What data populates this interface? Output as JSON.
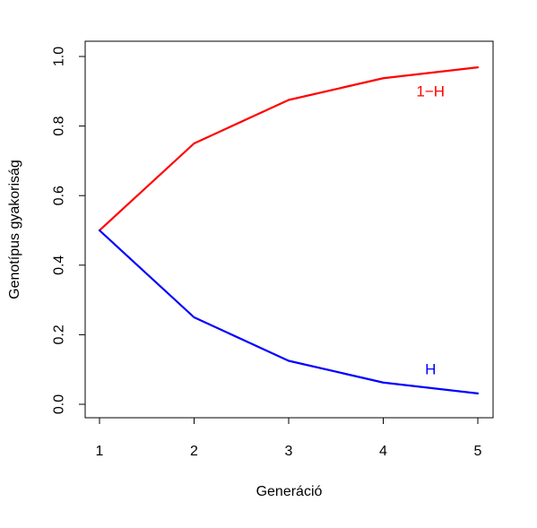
{
  "chart_data": {
    "type": "line",
    "title": "",
    "xlabel": "Generáció",
    "ylabel": "Genotípus gyakoriság",
    "x": [
      1,
      2,
      3,
      4,
      5
    ],
    "xlim": [
      1,
      5
    ],
    "ylim": [
      0,
      1
    ],
    "x_ticks": [
      1,
      2,
      3,
      4,
      5
    ],
    "x_tick_labels": [
      "1",
      "2",
      "3",
      "4",
      "5"
    ],
    "y_ticks": [
      0.0,
      0.2,
      0.4,
      0.6,
      0.8,
      1.0
    ],
    "y_tick_labels": [
      "0.0",
      "0.2",
      "0.4",
      "0.6",
      "0.8",
      "1.0"
    ],
    "grid": false,
    "series": [
      {
        "name": "1−H",
        "color": "#ff0000",
        "values": [
          0.5,
          0.75,
          0.875,
          0.9375,
          0.96875
        ]
      },
      {
        "name": "H",
        "color": "#0000ff",
        "values": [
          0.5,
          0.25,
          0.125,
          0.0625,
          0.03125
        ]
      }
    ],
    "annotations": [
      {
        "text": "1−H",
        "color": "#ff0000",
        "x": 4.5,
        "y": 0.9
      },
      {
        "text": "H",
        "color": "#0000ff",
        "x": 4.5,
        "y": 0.1
      }
    ]
  }
}
